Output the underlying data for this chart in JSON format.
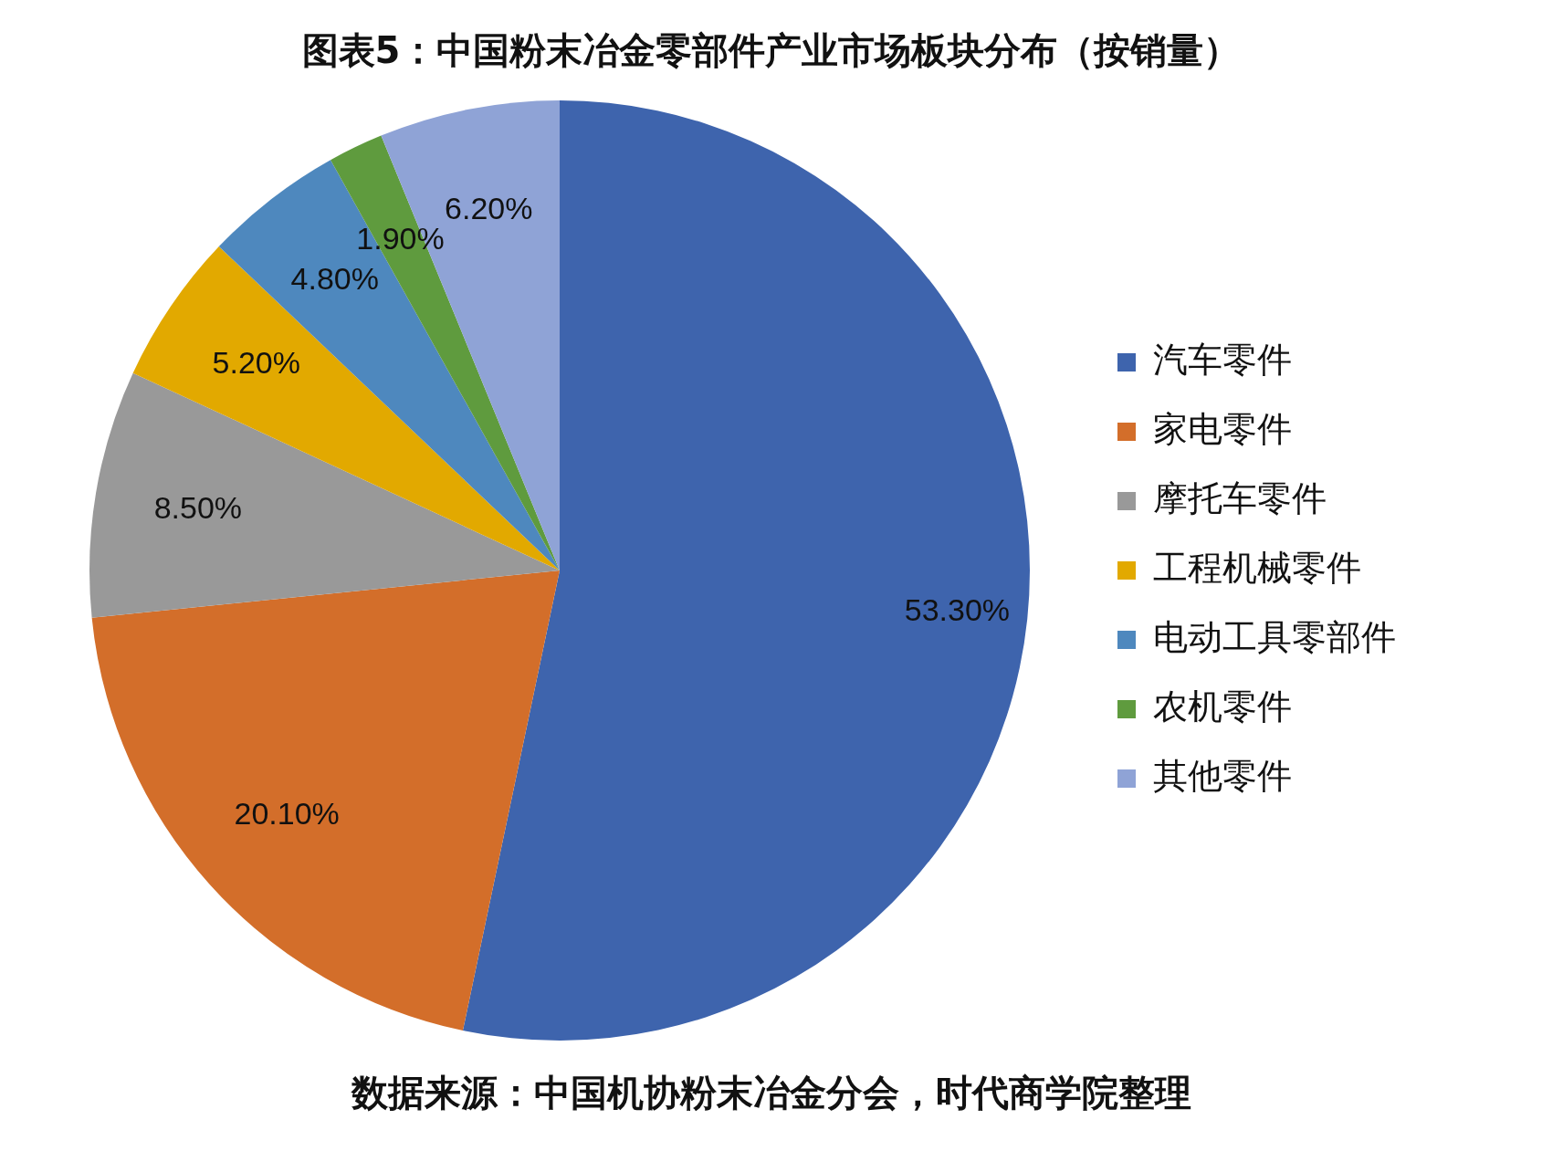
{
  "chart_data": {
    "type": "pie",
    "title": "图表5：中国粉末冶金零部件产业市场板块分布（按销量）",
    "categories": [
      "汽车零件",
      "家电零件",
      "摩托车零件",
      "工程机械零件",
      "电动工具零部件",
      "农机零件",
      "其他零件"
    ],
    "values": [
      53.3,
      20.1,
      8.5,
      5.2,
      4.8,
      1.9,
      6.2
    ],
    "value_labels": [
      "53.30%",
      "20.10%",
      "8.50%",
      "5.20%",
      "4.80%",
      "1.90%",
      "6.20%"
    ],
    "colors": [
      "#3e64ad",
      "#d36e2a",
      "#999999",
      "#e2a900",
      "#4e88be",
      "#5f9b3e",
      "#8fa3d6"
    ],
    "legend": "right",
    "annotations": [
      "数据来源：中国机协粉末冶金分会，时代商学院整理"
    ]
  }
}
